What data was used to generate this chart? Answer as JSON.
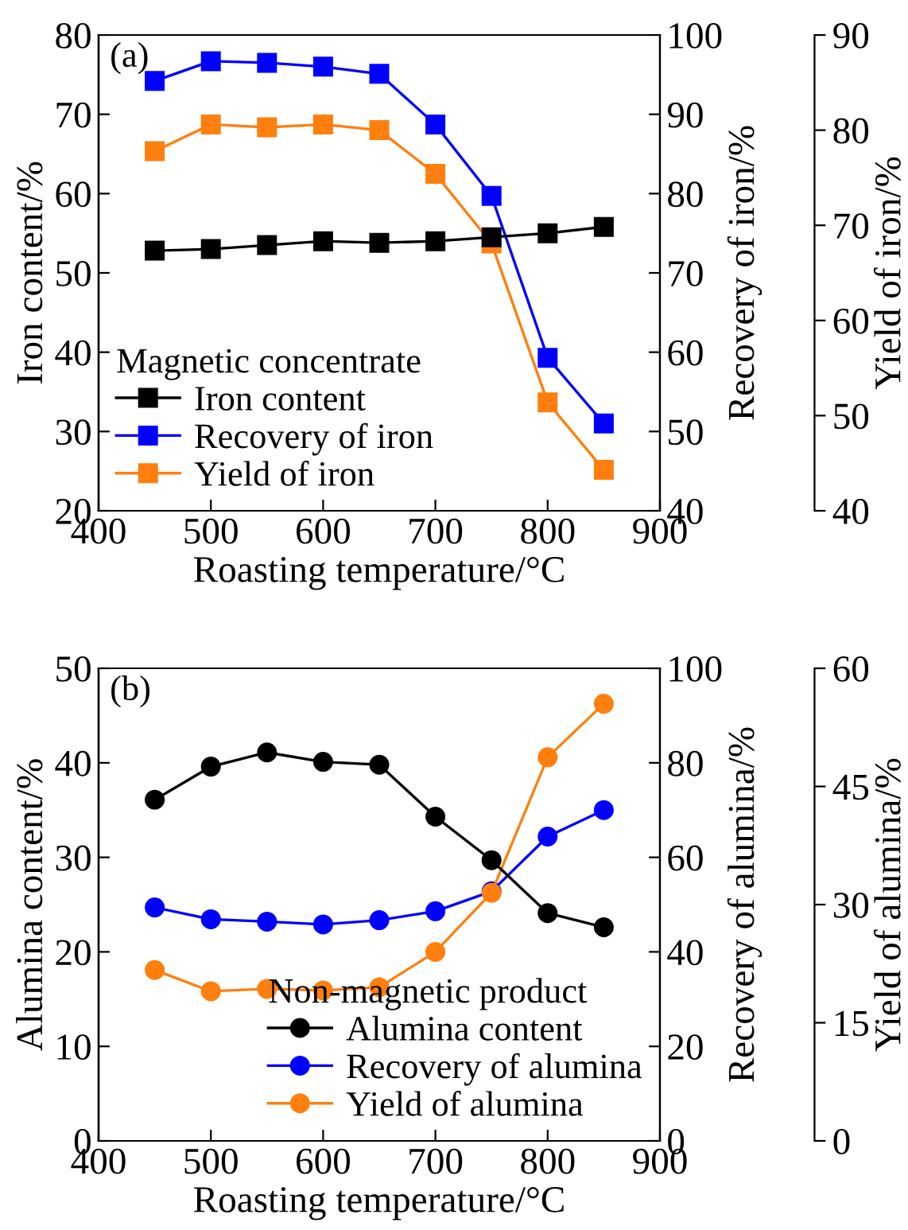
{
  "chart_data": [
    {
      "type": "line",
      "annotations": [
        "(a)"
      ],
      "xlabel": "Roasting temperature/°C",
      "ylabel": "Iron content/%",
      "y2label": "Recovery of iron/%",
      "y3label": "Yield of iron/%",
      "legend_title": "Magnetic concentrate",
      "legend": "bottom left",
      "marker": "square",
      "grid": false,
      "x": [
        450,
        500,
        550,
        600,
        650,
        700,
        750,
        800,
        850
      ],
      "xlim": [
        400,
        900
      ],
      "xticks": [
        400,
        500,
        600,
        700,
        800,
        900
      ],
      "ylim": [
        20,
        80
      ],
      "yticks": [
        20,
        30,
        40,
        50,
        60,
        70,
        80
      ],
      "y2lim": [
        40,
        100
      ],
      "y2ticks": [
        40,
        50,
        60,
        70,
        80,
        90,
        100
      ],
      "y3lim": [
        40,
        90
      ],
      "y3ticks": [
        40,
        50,
        60,
        70,
        80,
        90
      ],
      "series": [
        {
          "name": "Iron content",
          "color": "#000000",
          "values": [
            52.8,
            53.0,
            53.5,
            54.0,
            53.8,
            54.0,
            54.5,
            55.0,
            55.8
          ]
        },
        {
          "name": "Recovery of iron",
          "color": "#0000ff",
          "axis": "y2",
          "values": [
            94.2,
            96.7,
            96.5,
            96.0,
            95.1,
            88.7,
            79.7,
            59.3,
            51.0
          ]
        },
        {
          "name": "Yield of iron",
          "color": "#ff7f0e",
          "axis": "y3",
          "values": [
            77.8,
            80.6,
            80.3,
            80.6,
            80.0,
            75.4,
            68.1,
            51.4,
            44.3
          ]
        }
      ]
    },
    {
      "type": "line",
      "annotations": [
        "(b)"
      ],
      "xlabel": "Roasting temperature/°C",
      "ylabel": "Alumina content/%",
      "y2label": "Recovery of alumina/%",
      "y3label": "Yield of alumina/%",
      "legend_title": "Non-magnetic product",
      "legend": "bottom right",
      "marker": "circle",
      "grid": false,
      "x": [
        450,
        500,
        550,
        600,
        650,
        700,
        750,
        800,
        850
      ],
      "xlim": [
        400,
        900
      ],
      "xticks": [
        400,
        500,
        600,
        700,
        800,
        900
      ],
      "ylim": [
        0,
        50
      ],
      "yticks": [
        0,
        10,
        20,
        30,
        40,
        50
      ],
      "y2lim": [
        0,
        100
      ],
      "y2ticks": [
        0,
        20,
        40,
        60,
        80,
        100
      ],
      "y3lim": [
        0,
        60
      ],
      "y3ticks": [
        0,
        15,
        30,
        45,
        60
      ],
      "series": [
        {
          "name": "Alumina content",
          "color": "#000000",
          "values": [
            36.1,
            39.6,
            41.1,
            40.1,
            39.8,
            34.3,
            29.7,
            24.1,
            22.6
          ]
        },
        {
          "name": "Recovery of alumina",
          "color": "#0000ff",
          "axis": "y2",
          "values": [
            49.4,
            46.9,
            46.4,
            45.8,
            46.7,
            48.6,
            52.8,
            64.4,
            70.0
          ]
        },
        {
          "name": "Yield of alumina",
          "color": "#ff7f0e",
          "axis": "y3",
          "values": [
            21.7,
            19.0,
            19.3,
            19.1,
            19.5,
            24.0,
            31.5,
            48.7,
            55.5
          ]
        }
      ]
    }
  ]
}
